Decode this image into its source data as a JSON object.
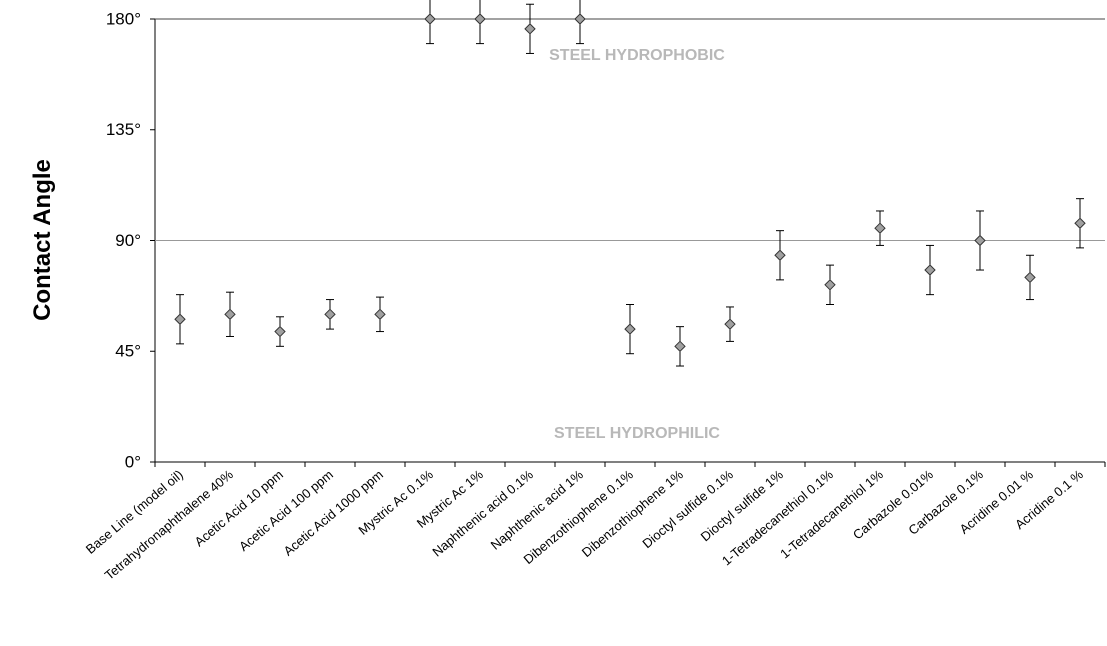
{
  "chart_data": {
    "type": "scatter",
    "y_label": "Contact Angle",
    "categories": [
      "Base Line (model oil)",
      "Tetrahydronaphthalene 40%",
      "Acetic Acid 10 ppm",
      "Acetic Acid 100 ppm",
      "Acetic Acid 1000 ppm",
      "Mystric Ac 0.1%",
      "Mystric Ac 1%",
      "Naphthenic acid 0.1%",
      "Naphthenic acid 1%",
      "Dibenzothiophene 0.1%",
      "Dibenzothiophene 1%",
      "Dioctyl sulfide  0.1%",
      "Dioctyl sulfide  1%",
      "1-Tetradecanethiol 0.1%",
      "1-Tetradecanethiol 1%",
      "Carbazole 0.01%",
      "Carbazole 0.1%",
      "Acridine 0.01 %",
      "Acridine 0.1 %"
    ],
    "values": [
      58,
      60,
      53,
      60,
      60,
      180,
      180,
      176,
      180,
      54,
      47,
      56,
      84,
      72,
      95,
      78,
      90,
      75,
      97
    ],
    "errors": [
      10,
      9,
      6,
      6,
      7,
      10,
      10,
      10,
      10,
      10,
      8,
      7,
      10,
      8,
      7,
      10,
      12,
      9,
      10
    ],
    "color": "#a0a0a0",
    "ylim": [
      0,
      180
    ],
    "yticks": [
      {
        "value": 0,
        "label": "0°"
      },
      {
        "value": 45,
        "label": "45°"
      },
      {
        "value": 90,
        "label": "90°"
      },
      {
        "value": 135,
        "label": "135°"
      },
      {
        "value": 180,
        "label": "180°"
      }
    ],
    "hlines": [
      90,
      180
    ],
    "annotations": [
      "STEEL HYDROPHOBIC",
      "STEEL HYDROPHILIC"
    ]
  }
}
